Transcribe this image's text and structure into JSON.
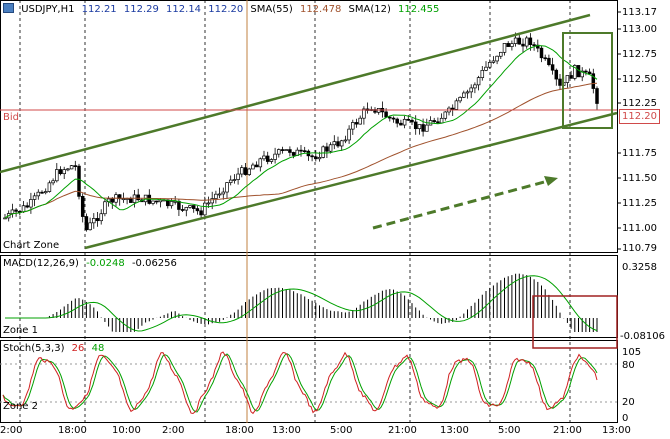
{
  "main_header": {
    "symbol": "USDJPY,H1",
    "open": "112.21",
    "high": "112.29",
    "low": "112.14",
    "close": "112.20",
    "sma55_label": "SMA(55)",
    "sma55_value": "112.478",
    "sma12_label": "SMA(12)",
    "sma12_value": "112.455"
  },
  "bid_label": "Bid",
  "bid_price": "112.20",
  "price_axis": [
    "113.17",
    "113.00",
    "112.75",
    "112.50",
    "112.25",
    "111.75",
    "111.50",
    "111.25",
    "111.00",
    "110.79"
  ],
  "zone_labels": {
    "chart": "Chart Zone",
    "zone1": "Zone 1",
    "zone2": "Zone 2"
  },
  "macd_header": {
    "label": "MACD(12,26,9)",
    "main": "-0.0248",
    "signal": "-0.06256"
  },
  "macd_axis": {
    "top": "0.3258",
    "bottom": "-0.08106"
  },
  "stoch_header": {
    "label": "Stoch(5,3,3)",
    "k": "26",
    "d": "48"
  },
  "stoch_axis": [
    "105",
    "80",
    "20",
    "0"
  ],
  "time_axis": [
    "2:00",
    "18:00",
    "10:00",
    "2:00",
    "18:00",
    "13:00",
    "5:00",
    "21:00",
    "13:00",
    "5:00",
    "21:00",
    "13:00"
  ],
  "colors": {
    "bull": "#ffffff",
    "bear": "#000000",
    "sma_fast": "#00a000",
    "sma_slow": "#a0522d",
    "channel": "#4d7a2a",
    "bid": "#d04a4a",
    "annotation_box_green": "#4d7a2a",
    "annotation_box_red": "#a02020",
    "stoch_k": "#d02020",
    "stoch_d": "#00a000",
    "divider": "#c08040"
  }
}
